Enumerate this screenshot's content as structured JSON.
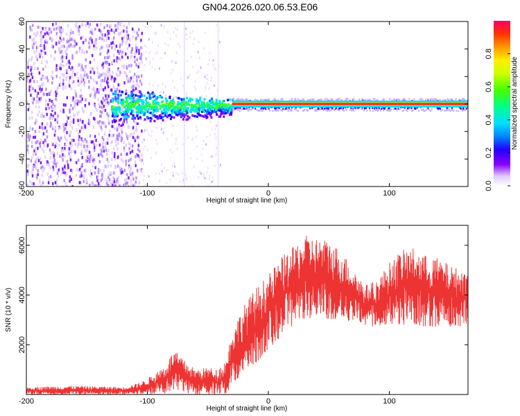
{
  "title": "GN04.2026.020.06.53.E06",
  "chart_data": [
    {
      "type": "heatmap",
      "xlabel": "Height of straight line (km)",
      "ylabel": "Frequency (Hz)",
      "xlim": [
        -200,
        165
      ],
      "ylim": [
        -60,
        60
      ],
      "xticks": [
        -200,
        -100,
        0,
        100
      ],
      "yticks": [
        -60,
        -40,
        -20,
        0,
        20,
        40,
        60
      ],
      "colorbar": {
        "label": "Normalized spectral amplitude",
        "range": [
          0,
          1
        ],
        "ticks": [
          0.0,
          0.2,
          0.4,
          0.6,
          0.8
        ]
      },
      "features": [
        {
          "region": "broadband noise",
          "x": [
            -200,
            -105
          ],
          "y": [
            -60,
            60
          ],
          "amplitude": 0.2
        },
        {
          "region": "scattered faint streaks",
          "x": [
            -105,
            -40
          ],
          "y": [
            -60,
            60
          ],
          "amplitude": 0.1
        },
        {
          "region": "broad signal band",
          "x": [
            -130,
            -30
          ],
          "y": [
            -15,
            12
          ],
          "amplitude": 0.45
        },
        {
          "region": "narrow carrier line",
          "x": [
            -30,
            165
          ],
          "y": [
            -3,
            3
          ],
          "amplitude": 0.95
        }
      ]
    },
    {
      "type": "line",
      "xlabel": "Height of straight line (km)",
      "ylabel": "SNR (10 * v/v)",
      "xlim": [
        -200,
        165
      ],
      "ylim": [
        0,
        6800
      ],
      "xticks": [
        -200,
        -100,
        0,
        100
      ],
      "yticks": [
        2000,
        4000,
        6000
      ],
      "color": "#ee3333",
      "envelope": {
        "x": [
          -200,
          -160,
          -120,
          -105,
          -95,
          -85,
          -78,
          -70,
          -60,
          -50,
          -42,
          -35,
          -30,
          -20,
          -10,
          0,
          10,
          20,
          30,
          40,
          50,
          60,
          70,
          80,
          90,
          100,
          110,
          120,
          130,
          140,
          150,
          165
        ],
        "min": [
          0,
          0,
          0,
          0,
          0,
          0,
          100,
          50,
          0,
          0,
          0,
          0,
          300,
          900,
          1200,
          1800,
          2300,
          2700,
          3000,
          3100,
          3000,
          2900,
          2900,
          2700,
          2700,
          2800,
          2800,
          2800,
          2700,
          2700,
          2700,
          2700
        ],
        "max": [
          300,
          350,
          300,
          500,
          800,
          1200,
          1800,
          1400,
          1000,
          1100,
          1000,
          1400,
          2600,
          3600,
          4300,
          4800,
          5500,
          5900,
          6400,
          6300,
          6200,
          5800,
          5100,
          4400,
          4600,
          5300,
          5800,
          5900,
          5600,
          5500,
          5200,
          4900
        ]
      }
    }
  ]
}
